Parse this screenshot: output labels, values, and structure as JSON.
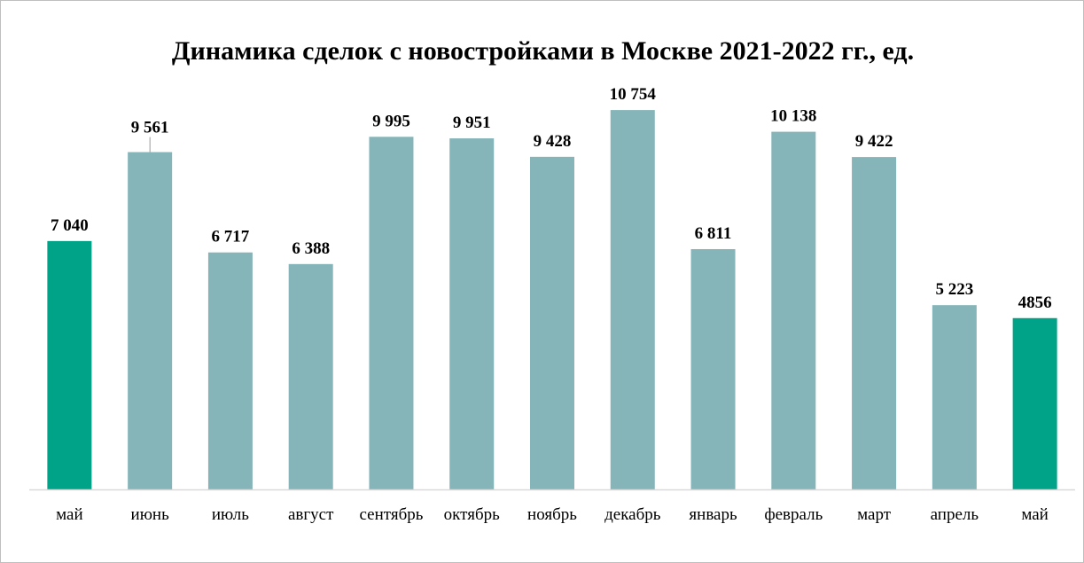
{
  "chart_data": {
    "type": "bar",
    "title": "Динамика сделок с новостройками в Москве 2021-2022 гг., ед.",
    "xlabel": "",
    "ylabel": "",
    "ylim": [
      0,
      11000
    ],
    "grid": false,
    "legend": "none",
    "categories": [
      "май",
      "июнь",
      "июль",
      "август",
      "сентябрь",
      "октябрь",
      "ноябрь",
      "декабрь",
      "январь",
      "февраль",
      "март",
      "апрель",
      "май"
    ],
    "values": [
      7040,
      9561,
      6717,
      6388,
      9995,
      9951,
      9428,
      10754,
      6811,
      10138,
      9422,
      5223,
      4856
    ],
    "data_labels": [
      "7 040",
      "9 561",
      "6 717",
      "6 388",
      "9 995",
      "9 951",
      "9 428",
      "10 754",
      "6 811",
      "10 138",
      "9 422",
      "5 223",
      "4856"
    ],
    "highlighted": [
      true,
      false,
      false,
      false,
      false,
      false,
      false,
      false,
      false,
      false,
      false,
      false,
      true
    ],
    "colors": {
      "highlight": "#00a388",
      "default": "#85b5b9",
      "axis": "#d9d9d9",
      "leader": "#999999"
    }
  }
}
